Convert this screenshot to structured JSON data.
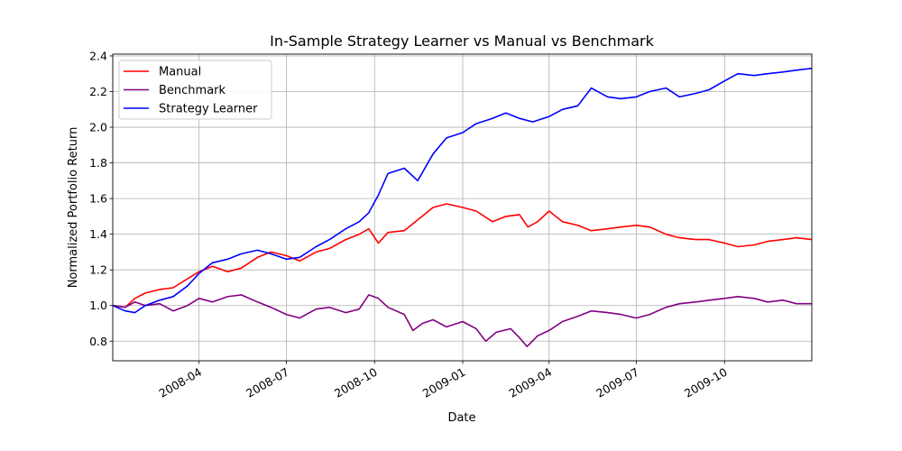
{
  "chart_data": {
    "type": "line",
    "title": "In-Sample Strategy Learner vs Manual vs Benchmark",
    "xlabel": "Date",
    "ylabel": "Normalized Portfolio Return",
    "xlim": [
      "2008-01-02",
      "2009-12-31"
    ],
    "ylim": [
      0.69,
      2.41
    ],
    "grid": true,
    "legend_position": "upper-left",
    "x_ticks": [
      "2008-04-01",
      "2008-07-01",
      "2008-10-01",
      "2009-01-01",
      "2009-04-01",
      "2009-07-01",
      "2009-10-01"
    ],
    "x_tick_labels": [
      "2008-04",
      "2008-07",
      "2008-10",
      "2009-01",
      "2009-04",
      "2009-07",
      "2009-10"
    ],
    "y_ticks": [
      0.8,
      1.0,
      1.2,
      1.4,
      1.6,
      1.8,
      2.0,
      2.2,
      2.4
    ],
    "y_tick_labels": [
      "0.8",
      "1.0",
      "1.2",
      "1.4",
      "1.6",
      "1.8",
      "2.0",
      "2.2",
      "2.4"
    ],
    "series": [
      {
        "name": "Manual",
        "color": "#ff0000",
        "x": [
          "2008-01-02",
          "2008-01-15",
          "2008-01-25",
          "2008-02-05",
          "2008-02-20",
          "2008-03-05",
          "2008-03-20",
          "2008-04-01",
          "2008-04-15",
          "2008-05-01",
          "2008-05-15",
          "2008-06-01",
          "2008-06-15",
          "2008-07-01",
          "2008-07-15",
          "2008-08-01",
          "2008-08-15",
          "2008-09-01",
          "2008-09-15",
          "2008-09-25",
          "2008-10-05",
          "2008-10-15",
          "2008-11-01",
          "2008-11-15",
          "2008-12-01",
          "2008-12-15",
          "2009-01-01",
          "2009-01-15",
          "2009-02-01",
          "2009-02-15",
          "2009-03-01",
          "2009-03-10",
          "2009-03-20",
          "2009-04-01",
          "2009-04-15",
          "2009-05-01",
          "2009-05-15",
          "2009-06-01",
          "2009-06-15",
          "2009-07-01",
          "2009-07-15",
          "2009-08-01",
          "2009-08-15",
          "2009-09-01",
          "2009-09-15",
          "2009-10-01",
          "2009-10-15",
          "2009-11-01",
          "2009-11-15",
          "2009-12-01",
          "2009-12-15",
          "2009-12-31"
        ],
        "y": [
          1.0,
          0.99,
          1.04,
          1.07,
          1.09,
          1.1,
          1.15,
          1.19,
          1.22,
          1.19,
          1.21,
          1.27,
          1.3,
          1.28,
          1.25,
          1.3,
          1.32,
          1.37,
          1.4,
          1.43,
          1.35,
          1.41,
          1.42,
          1.48,
          1.55,
          1.57,
          1.55,
          1.53,
          1.47,
          1.5,
          1.51,
          1.44,
          1.47,
          1.53,
          1.47,
          1.45,
          1.42,
          1.43,
          1.44,
          1.45,
          1.44,
          1.4,
          1.38,
          1.37,
          1.37,
          1.35,
          1.33,
          1.34,
          1.36,
          1.37,
          1.38,
          1.37
        ]
      },
      {
        "name": "Benchmark",
        "color": "#800080",
        "x": [
          "2008-01-02",
          "2008-01-15",
          "2008-01-25",
          "2008-02-05",
          "2008-02-20",
          "2008-03-05",
          "2008-03-20",
          "2008-04-01",
          "2008-04-15",
          "2008-05-01",
          "2008-05-15",
          "2008-06-01",
          "2008-06-15",
          "2008-07-01",
          "2008-07-15",
          "2008-08-01",
          "2008-08-15",
          "2008-09-01",
          "2008-09-15",
          "2008-09-25",
          "2008-10-05",
          "2008-10-15",
          "2008-11-01",
          "2008-11-10",
          "2008-11-20",
          "2008-12-01",
          "2008-12-15",
          "2009-01-01",
          "2009-01-15",
          "2009-01-25",
          "2009-02-05",
          "2009-02-20",
          "2009-03-01",
          "2009-03-09",
          "2009-03-20",
          "2009-04-01",
          "2009-04-15",
          "2009-05-01",
          "2009-05-15",
          "2009-06-01",
          "2009-06-15",
          "2009-07-01",
          "2009-07-15",
          "2009-08-01",
          "2009-08-15",
          "2009-09-01",
          "2009-09-15",
          "2009-10-01",
          "2009-10-15",
          "2009-11-01",
          "2009-11-15",
          "2009-12-01",
          "2009-12-15",
          "2009-12-31"
        ],
        "y": [
          1.0,
          0.99,
          1.02,
          1.0,
          1.01,
          0.97,
          1.0,
          1.04,
          1.02,
          1.05,
          1.06,
          1.02,
          0.99,
          0.95,
          0.93,
          0.98,
          0.99,
          0.96,
          0.98,
          1.06,
          1.04,
          0.99,
          0.95,
          0.86,
          0.9,
          0.92,
          0.88,
          0.91,
          0.87,
          0.8,
          0.85,
          0.87,
          0.82,
          0.77,
          0.83,
          0.86,
          0.91,
          0.94,
          0.97,
          0.96,
          0.95,
          0.93,
          0.95,
          0.99,
          1.01,
          1.02,
          1.03,
          1.04,
          1.05,
          1.04,
          1.02,
          1.03,
          1.01,
          1.01
        ]
      },
      {
        "name": "Strategy Learner",
        "color": "#0000ff",
        "x": [
          "2008-01-02",
          "2008-01-15",
          "2008-01-25",
          "2008-02-05",
          "2008-02-20",
          "2008-03-05",
          "2008-03-20",
          "2008-04-01",
          "2008-04-15",
          "2008-05-01",
          "2008-05-15",
          "2008-06-01",
          "2008-06-15",
          "2008-07-01",
          "2008-07-15",
          "2008-08-01",
          "2008-08-15",
          "2008-09-01",
          "2008-09-15",
          "2008-09-25",
          "2008-10-05",
          "2008-10-15",
          "2008-11-01",
          "2008-11-15",
          "2008-12-01",
          "2008-12-15",
          "2009-01-01",
          "2009-01-15",
          "2009-02-01",
          "2009-02-15",
          "2009-03-01",
          "2009-03-15",
          "2009-04-01",
          "2009-04-15",
          "2009-05-01",
          "2009-05-15",
          "2009-06-01",
          "2009-06-15",
          "2009-07-01",
          "2009-07-15",
          "2009-08-01",
          "2009-08-15",
          "2009-09-01",
          "2009-09-15",
          "2009-10-01",
          "2009-10-15",
          "2009-11-01",
          "2009-11-15",
          "2009-12-01",
          "2009-12-15",
          "2009-12-31"
        ],
        "y": [
          1.0,
          0.97,
          0.96,
          1.0,
          1.03,
          1.05,
          1.11,
          1.18,
          1.24,
          1.26,
          1.29,
          1.31,
          1.29,
          1.26,
          1.27,
          1.33,
          1.37,
          1.43,
          1.47,
          1.52,
          1.62,
          1.74,
          1.77,
          1.7,
          1.85,
          1.94,
          1.97,
          2.02,
          2.05,
          2.08,
          2.05,
          2.03,
          2.06,
          2.1,
          2.12,
          2.22,
          2.17,
          2.16,
          2.17,
          2.2,
          2.22,
          2.17,
          2.19,
          2.21,
          2.26,
          2.3,
          2.29,
          2.3,
          2.31,
          2.32,
          2.33
        ]
      }
    ]
  }
}
